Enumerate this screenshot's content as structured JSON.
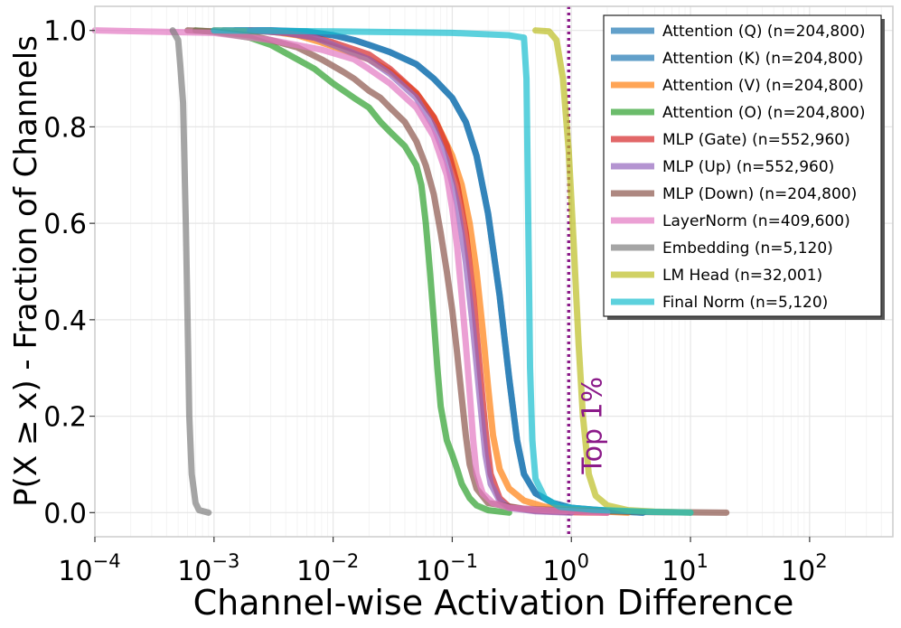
{
  "chart_data": {
    "type": "line",
    "title": "",
    "xlabel": "Channel-wise Activation Difference",
    "ylabel": "P(X ≥ x) - Fraction of Channels",
    "xscale": "log",
    "xlim": [
      0.0001,
      500
    ],
    "ylim": [
      -0.05,
      1.05
    ],
    "grid": true,
    "legend_position": "top-right",
    "x_ticks": [
      {
        "base": "10",
        "exp": "−4",
        "value": 0.0001
      },
      {
        "base": "10",
        "exp": "−3",
        "value": 0.001
      },
      {
        "base": "10",
        "exp": "−2",
        "value": 0.01
      },
      {
        "base": "10",
        "exp": "−1",
        "value": 0.1
      },
      {
        "base": "10",
        "exp": "0",
        "value": 1
      },
      {
        "base": "10",
        "exp": "1",
        "value": 10
      },
      {
        "base": "10",
        "exp": "2",
        "value": 100
      }
    ],
    "y_ticks": [
      {
        "label": "0.0",
        "value": 0.0
      },
      {
        "label": "0.2",
        "value": 0.2
      },
      {
        "label": "0.4",
        "value": 0.4
      },
      {
        "label": "0.6",
        "value": 0.6
      },
      {
        "label": "0.8",
        "value": 0.8
      },
      {
        "label": "1.0",
        "value": 1.0
      }
    ],
    "reference_line": {
      "x": 0.95,
      "label": "Top 1%",
      "color": "#8b1a89",
      "style": "dotted"
    },
    "series": [
      {
        "name": "Attention (Q) (n=204,800)",
        "color": "#1f77b4",
        "points": [
          [
            0.0012,
            1.0
          ],
          [
            0.003,
            1.0
          ],
          [
            0.006,
            0.998
          ],
          [
            0.01,
            0.99
          ],
          [
            0.015,
            0.98
          ],
          [
            0.02,
            0.97
          ],
          [
            0.03,
            0.955
          ],
          [
            0.05,
            0.93
          ],
          [
            0.07,
            0.9
          ],
          [
            0.1,
            0.86
          ],
          [
            0.13,
            0.81
          ],
          [
            0.16,
            0.74
          ],
          [
            0.2,
            0.62
          ],
          [
            0.25,
            0.45
          ],
          [
            0.3,
            0.28
          ],
          [
            0.35,
            0.15
          ],
          [
            0.4,
            0.08
          ],
          [
            0.5,
            0.04
          ],
          [
            0.7,
            0.02
          ],
          [
            1.0,
            0.01
          ],
          [
            2.0,
            0.004
          ],
          [
            4.0,
            0.0
          ]
        ]
      },
      {
        "name": "Attention (K) (n=204,800)",
        "color": "#1f77b4",
        "points": [
          [
            0.0015,
            1.0
          ],
          [
            0.003,
            1.0
          ],
          [
            0.006,
            0.997
          ],
          [
            0.01,
            0.99
          ],
          [
            0.015,
            0.98
          ],
          [
            0.02,
            0.97
          ],
          [
            0.03,
            0.955
          ],
          [
            0.05,
            0.93
          ],
          [
            0.07,
            0.9
          ],
          [
            0.1,
            0.86
          ],
          [
            0.13,
            0.81
          ],
          [
            0.16,
            0.74
          ],
          [
            0.2,
            0.62
          ],
          [
            0.25,
            0.45
          ],
          [
            0.3,
            0.28
          ],
          [
            0.35,
            0.15
          ],
          [
            0.4,
            0.08
          ],
          [
            0.5,
            0.04
          ],
          [
            0.7,
            0.02
          ],
          [
            1.0,
            0.01
          ],
          [
            2.0,
            0.004
          ],
          [
            4.0,
            0.0
          ]
        ]
      },
      {
        "name": "Attention (V) (n=204,800)",
        "color": "#ff7f0e",
        "points": [
          [
            0.001,
            1.0
          ],
          [
            0.003,
            0.998
          ],
          [
            0.005,
            0.99
          ],
          [
            0.008,
            0.975
          ],
          [
            0.012,
            0.96
          ],
          [
            0.02,
            0.94
          ],
          [
            0.03,
            0.915
          ],
          [
            0.05,
            0.87
          ],
          [
            0.07,
            0.82
          ],
          [
            0.1,
            0.74
          ],
          [
            0.12,
            0.68
          ],
          [
            0.14,
            0.6
          ],
          [
            0.16,
            0.5
          ],
          [
            0.18,
            0.38
          ],
          [
            0.2,
            0.26
          ],
          [
            0.22,
            0.16
          ],
          [
            0.25,
            0.09
          ],
          [
            0.3,
            0.05
          ],
          [
            0.4,
            0.025
          ],
          [
            0.6,
            0.012
          ],
          [
            1.0,
            0.006
          ],
          [
            2.0,
            0.002
          ],
          [
            3.0,
            0.0
          ]
        ]
      },
      {
        "name": "Attention (O) (n=204,800)",
        "color": "#2ca02c",
        "points": [
          [
            0.0007,
            1.0
          ],
          [
            0.001,
            0.997
          ],
          [
            0.002,
            0.985
          ],
          [
            0.003,
            0.97
          ],
          [
            0.005,
            0.94
          ],
          [
            0.007,
            0.92
          ],
          [
            0.01,
            0.89
          ],
          [
            0.015,
            0.86
          ],
          [
            0.02,
            0.84
          ],
          [
            0.025,
            0.81
          ],
          [
            0.03,
            0.79
          ],
          [
            0.04,
            0.76
          ],
          [
            0.05,
            0.72
          ],
          [
            0.055,
            0.68
          ],
          [
            0.06,
            0.6
          ],
          [
            0.065,
            0.5
          ],
          [
            0.07,
            0.4
          ],
          [
            0.075,
            0.3
          ],
          [
            0.08,
            0.22
          ],
          [
            0.09,
            0.15
          ],
          [
            0.1,
            0.12
          ],
          [
            0.11,
            0.09
          ],
          [
            0.12,
            0.06
          ],
          [
            0.14,
            0.03
          ],
          [
            0.16,
            0.015
          ],
          [
            0.2,
            0.005
          ],
          [
            0.3,
            0.0
          ]
        ]
      },
      {
        "name": "MLP (Gate) (n=552,960)",
        "color": "#d62728",
        "points": [
          [
            0.002,
            1.0
          ],
          [
            0.004,
            0.995
          ],
          [
            0.007,
            0.985
          ],
          [
            0.01,
            0.975
          ],
          [
            0.02,
            0.95
          ],
          [
            0.03,
            0.92
          ],
          [
            0.05,
            0.87
          ],
          [
            0.07,
            0.82
          ],
          [
            0.09,
            0.76
          ],
          [
            0.11,
            0.68
          ],
          [
            0.13,
            0.58
          ],
          [
            0.15,
            0.45
          ],
          [
            0.17,
            0.3
          ],
          [
            0.19,
            0.17
          ],
          [
            0.21,
            0.08
          ],
          [
            0.25,
            0.03
          ],
          [
            0.3,
            0.012
          ],
          [
            0.5,
            0.004
          ],
          [
            1.0,
            0.001
          ],
          [
            2.0,
            0.0
          ]
        ]
      },
      {
        "name": "MLP (Up) (n=552,960)",
        "color": "#9467bd",
        "points": [
          [
            0.002,
            1.0
          ],
          [
            0.004,
            0.995
          ],
          [
            0.007,
            0.985
          ],
          [
            0.01,
            0.97
          ],
          [
            0.02,
            0.94
          ],
          [
            0.03,
            0.91
          ],
          [
            0.05,
            0.86
          ],
          [
            0.07,
            0.8
          ],
          [
            0.09,
            0.73
          ],
          [
            0.11,
            0.64
          ],
          [
            0.13,
            0.52
          ],
          [
            0.15,
            0.38
          ],
          [
            0.17,
            0.24
          ],
          [
            0.19,
            0.12
          ],
          [
            0.21,
            0.06
          ],
          [
            0.25,
            0.025
          ],
          [
            0.3,
            0.01
          ],
          [
            0.5,
            0.003
          ],
          [
            1.0,
            0.0
          ]
        ]
      },
      {
        "name": "MLP (Down) (n=204,800)",
        "color": "#8c564b",
        "points": [
          [
            0.0006,
            1.0
          ],
          [
            0.001,
            0.998
          ],
          [
            0.002,
            0.99
          ],
          [
            0.003,
            0.98
          ],
          [
            0.005,
            0.965
          ],
          [
            0.008,
            0.94
          ],
          [
            0.012,
            0.915
          ],
          [
            0.015,
            0.9
          ],
          [
            0.02,
            0.875
          ],
          [
            0.025,
            0.86
          ],
          [
            0.03,
            0.84
          ],
          [
            0.04,
            0.81
          ],
          [
            0.05,
            0.77
          ],
          [
            0.06,
            0.72
          ],
          [
            0.07,
            0.66
          ],
          [
            0.08,
            0.58
          ],
          [
            0.09,
            0.5
          ],
          [
            0.1,
            0.42
          ],
          [
            0.11,
            0.33
          ],
          [
            0.12,
            0.24
          ],
          [
            0.13,
            0.16
          ],
          [
            0.14,
            0.1
          ],
          [
            0.16,
            0.05
          ],
          [
            0.2,
            0.02
          ],
          [
            0.4,
            0.008
          ],
          [
            1.0,
            0.004
          ],
          [
            5.0,
            0.001
          ],
          [
            20.0,
            0.0
          ]
        ]
      },
      {
        "name": "LayerNorm (n=409,600)",
        "color": "#e377c2",
        "points": [
          [
            0.0001,
            1.0
          ],
          [
            0.001,
            0.995
          ],
          [
            0.003,
            0.98
          ],
          [
            0.008,
            0.96
          ],
          [
            0.015,
            0.94
          ],
          [
            0.02,
            0.92
          ],
          [
            0.03,
            0.89
          ],
          [
            0.05,
            0.84
          ],
          [
            0.07,
            0.78
          ],
          [
            0.09,
            0.7
          ],
          [
            0.1,
            0.63
          ],
          [
            0.11,
            0.55
          ],
          [
            0.12,
            0.45
          ],
          [
            0.13,
            0.35
          ],
          [
            0.14,
            0.25
          ],
          [
            0.15,
            0.15
          ],
          [
            0.16,
            0.08
          ],
          [
            0.18,
            0.04
          ],
          [
            0.22,
            0.02
          ],
          [
            0.3,
            0.01
          ],
          [
            0.6,
            0.005
          ],
          [
            1.0,
            0.003
          ],
          [
            2.0,
            0.0
          ]
        ]
      },
      {
        "name": "Embedding (n=5,120)",
        "color": "#7f7f7f",
        "points": [
          [
            0.00045,
            1.0
          ],
          [
            0.0005,
            0.98
          ],
          [
            0.00052,
            0.93
          ],
          [
            0.00055,
            0.85
          ],
          [
            0.00058,
            0.6
          ],
          [
            0.0006,
            0.4
          ],
          [
            0.00062,
            0.2
          ],
          [
            0.00065,
            0.08
          ],
          [
            0.0007,
            0.02
          ],
          [
            0.00075,
            0.005
          ],
          [
            0.0009,
            0.0
          ]
        ]
      },
      {
        "name": "LM Head (n=32,001)",
        "color": "#bcbd22",
        "points": [
          [
            0.5,
            1.0
          ],
          [
            0.65,
            0.998
          ],
          [
            0.75,
            0.98
          ],
          [
            0.85,
            0.9
          ],
          [
            0.95,
            0.75
          ],
          [
            1.05,
            0.55
          ],
          [
            1.15,
            0.35
          ],
          [
            1.25,
            0.2
          ],
          [
            1.4,
            0.08
          ],
          [
            1.6,
            0.035
          ],
          [
            2.0,
            0.015
          ],
          [
            3.0,
            0.005
          ],
          [
            5.0,
            0.002
          ],
          [
            10.0,
            0.0
          ]
        ]
      },
      {
        "name": "Final Norm (n=5,120)",
        "color": "#17becf",
        "points": [
          [
            0.001,
            1.0
          ],
          [
            0.01,
            0.998
          ],
          [
            0.1,
            0.995
          ],
          [
            0.3,
            0.99
          ],
          [
            0.4,
            0.985
          ],
          [
            0.42,
            0.9
          ],
          [
            0.43,
            0.7
          ],
          [
            0.44,
            0.5
          ],
          [
            0.45,
            0.3
          ],
          [
            0.47,
            0.15
          ],
          [
            0.5,
            0.07
          ],
          [
            0.6,
            0.03
          ],
          [
            0.8,
            0.012
          ],
          [
            1.5,
            0.006
          ],
          [
            4.0,
            0.002
          ],
          [
            10.0,
            0.0
          ]
        ]
      }
    ]
  }
}
